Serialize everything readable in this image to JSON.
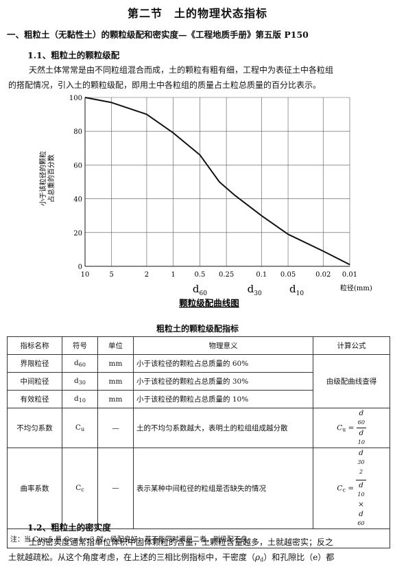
{
  "section_title": "第二节　土的物理状态指标",
  "heading1": "一、粗粒土（无黏性土）的颗粒级配和密实度—《工程地质手册》第五版 P150",
  "heading11": "1.1、粗粒土的颗粒级配",
  "para1_line1": "天然土体常常是由不同粒组混合而成，土的颗粒有粗有细，工程中为表征土中各粒组",
  "para1_line2": "的搭配情况，引入土的颗粒级配，即用土中各粒组的质量占土粒总质量的百分比表示。",
  "chart_data": {
    "type": "line",
    "title": "颗粒级配曲线图",
    "xlabel": "粒径(mm)",
    "ylabel": "小于该粒径的颗粒占总重的百分数",
    "x_scale": "log, decreasing to the right",
    "x_tick_labels": [
      "10",
      "5",
      "2",
      "1",
      "0.5",
      "0.25",
      "0.1",
      "0.05",
      "0.02",
      "0.01"
    ],
    "y_ticks": [
      "0",
      "20",
      "40",
      "60",
      "80",
      "100"
    ],
    "ylim": [
      0,
      100
    ],
    "grid": true,
    "x": [
      10,
      5,
      2,
      1,
      0.5,
      0.3,
      0.2,
      0.1,
      0.05,
      0.02,
      0.01
    ],
    "y": [
      100,
      97,
      90,
      79,
      66,
      50,
      42,
      30,
      19,
      9,
      1
    ],
    "markers": [
      {
        "label": "d",
        "sub": "60",
        "x": 0.5
      },
      {
        "label": "d",
        "sub": "30",
        "x": 0.12
      },
      {
        "label": "d",
        "sub": "10",
        "x": 0.04
      }
    ]
  },
  "table_title": "粗粒土的颗粒级配指标",
  "table": {
    "headers": [
      "指标名称",
      "符号",
      "单位",
      "物理意义",
      "计算公式"
    ],
    "rows": [
      {
        "name": "界限粒径",
        "symbol": "d",
        "symbol_sub": "60",
        "unit": "mm",
        "meaning": "小于该粒径的颗粒占总质量的 60%"
      },
      {
        "name": "中间粒径",
        "symbol": "d",
        "symbol_sub": "30",
        "unit": "mm",
        "meaning": "小于该粒径的颗粒占总质量的 30%"
      },
      {
        "name": "有效粒径",
        "symbol": "d",
        "symbol_sub": "10",
        "unit": "mm",
        "meaning": "小于该粒径的颗粒占总质量的 10%"
      },
      {
        "name": "不均匀系数",
        "symbol": "C",
        "symbol_sub": "u",
        "unit": "—",
        "meaning": "土的不均匀系数越大，表明土的粒组组成越分散"
      },
      {
        "name": "曲率系数",
        "symbol": "C",
        "symbol_sub": "c",
        "unit": "—",
        "meaning": "表示某种中间粒径的粒组是否缺失的情况"
      }
    ],
    "formula_merged": "由级配曲线查得",
    "formula_cu": {
      "lhs": "C",
      "lhs_sub": "u",
      "num": "d",
      "num_sub": "60",
      "den": "d",
      "den_sub": "10"
    },
    "formula_cc": {
      "lhs": "C",
      "lhs_sub": "c",
      "num": "d",
      "num_sub": "30",
      "num_sup": "2",
      "den1": "d",
      "den1_sub": "10",
      "times": "×",
      "den2": "d",
      "den2_sub": "60"
    },
    "note": "注：当 Cu≥5 且 Cc=1～3 时，级配良好；若不能同时满足二者，则级配不良"
  },
  "heading12": "1.2、粗粒土的密实度",
  "para2_line1": "土的密实度通常指单位体积中固体颗粒的含量，土颗粒含量越多，土就越密实；反之",
  "para2_line2_a": "土就越疏松。从这个角度考虑，在上述的三相比例指标中，干密度（",
  "para2_line2_rho": "ρ",
  "para2_line2_sub": "d",
  "para2_line2_b": "）和孔隙比（e）都"
}
